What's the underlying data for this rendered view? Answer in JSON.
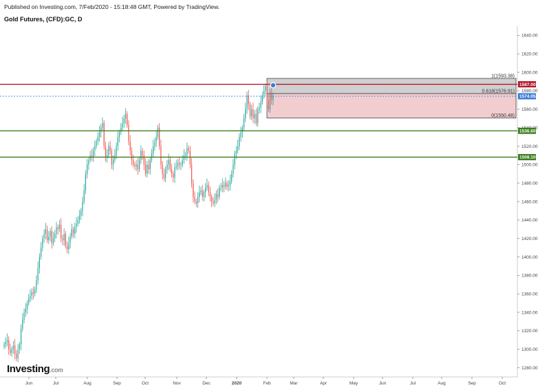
{
  "header": {
    "published": "Published on Investing.com, 7/Feb/2020 - 15:18:48 GMT, Powered by TradingView.",
    "title": "Gold Futures, (CFD):GC, D"
  },
  "logo": {
    "brand": "Investing",
    "suffix": ".com"
  },
  "colors": {
    "up": "#26a69a",
    "down": "#ef5350",
    "support": "#3a7d1c",
    "resistance": "#b2182b",
    "current": "#3d7bd9",
    "fib_zone_top": "#c8c8c8",
    "fib_zone_bottom": "#f0c4c8"
  },
  "chart_data": {
    "type": "candlestick",
    "title": "Gold Futures, (CFD):GC, D",
    "ylim": [
      1270,
      1650
    ],
    "y_ticks": [
      "1640.00",
      "1620.00",
      "1600.00",
      "1580.00",
      "1560.00",
      "1540.00",
      "1520.00",
      "1500.00",
      "1480.00",
      "1460.00",
      "1440.00",
      "1420.00",
      "1400.00",
      "1380.00",
      "1360.00",
      "1340.00",
      "1320.00",
      "1300.00",
      "1280.00"
    ],
    "x_ticks": [
      "Jun",
      "Jul",
      "Aug",
      "Sep",
      "Oct",
      "Nov",
      "Dec",
      "2020",
      "Feb",
      "Mar",
      "Apr",
      "May",
      "Jun",
      "Jul",
      "Aug",
      "Sep",
      "Oct"
    ],
    "horizontal_lines": [
      {
        "value": 1587.0,
        "label": "1587.00",
        "color": "#b2182b"
      },
      {
        "value": 1536.6,
        "label": "1536.60",
        "color": "#3a7d1c"
      },
      {
        "value": 1508.1,
        "label": "1508.10",
        "color": "#3a7d1c"
      }
    ],
    "current_price": {
      "value": 1574.05,
      "label": "1574.05"
    },
    "fibonacci": [
      {
        "label": "1(1593.38)",
        "value": 1593.38
      },
      {
        "label": "0.618(1576.91)",
        "value": 1576.91
      },
      {
        "label": "0(1550.48)",
        "value": 1550.48
      }
    ],
    "closes": [
      1305,
      1308,
      1310,
      1300,
      1296,
      1300,
      1304,
      1295,
      1290,
      1300,
      1305,
      1322,
      1332,
      1340,
      1344,
      1350,
      1355,
      1358,
      1362,
      1360,
      1365,
      1375,
      1388,
      1400,
      1410,
      1420,
      1425,
      1430,
      1418,
      1422,
      1428,
      1415,
      1420,
      1425,
      1432,
      1430,
      1435,
      1420,
      1418,
      1425,
      1412,
      1408,
      1415,
      1422,
      1430,
      1425,
      1432,
      1436,
      1440,
      1445,
      1450,
      1460,
      1472,
      1490,
      1500,
      1505,
      1510,
      1508,
      1515,
      1520,
      1525,
      1530,
      1535,
      1540,
      1545,
      1520,
      1508,
      1510,
      1520,
      1515,
      1500,
      1505,
      1510,
      1520,
      1530,
      1535,
      1540,
      1545,
      1550,
      1555,
      1543,
      1525,
      1515,
      1505,
      1500,
      1498,
      1500,
      1495,
      1505,
      1515,
      1510,
      1500,
      1490,
      1500,
      1495,
      1505,
      1512,
      1520,
      1525,
      1530,
      1540,
      1520,
      1500,
      1490,
      1485,
      1495,
      1500,
      1505,
      1495,
      1490,
      1486,
      1497,
      1498,
      1502,
      1500,
      1500,
      1505,
      1510,
      1510,
      1518,
      1515,
      1500,
      1480,
      1465,
      1460,
      1458,
      1465,
      1470,
      1472,
      1465,
      1470,
      1475,
      1478,
      1470,
      1465,
      1460,
      1458,
      1462,
      1468,
      1465,
      1475,
      1475,
      1478,
      1476,
      1480,
      1476,
      1478,
      1482,
      1490,
      1500,
      1512,
      1515,
      1520,
      1530,
      1535,
      1540,
      1550,
      1560,
      1575,
      1565,
      1552,
      1560,
      1550,
      1555,
      1545,
      1560,
      1562,
      1568,
      1575,
      1580,
      1585,
      1570,
      1560,
      1578,
      1570,
      1575
    ]
  }
}
